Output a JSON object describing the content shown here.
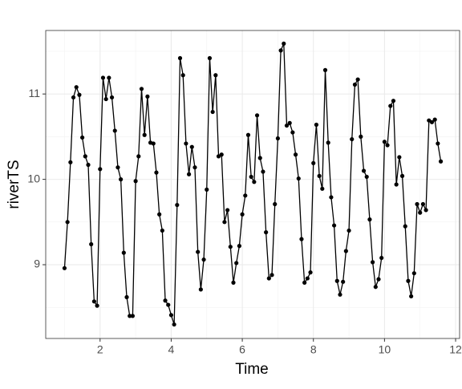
{
  "chart_data": {
    "type": "line",
    "xlabel": "Time",
    "ylabel": "riverTS",
    "x": [
      1,
      1.0833,
      1.1667,
      1.25,
      1.3333,
      1.4167,
      1.5,
      1.5833,
      1.6667,
      1.75,
      1.8333,
      1.9167,
      2,
      2.0833,
      2.1667,
      2.25,
      2.3333,
      2.4167,
      2.5,
      2.5833,
      2.6667,
      2.75,
      2.8333,
      2.9167,
      3,
      3.0833,
      3.1667,
      3.25,
      3.3333,
      3.4167,
      3.5,
      3.5833,
      3.6667,
      3.75,
      3.8333,
      3.9167,
      4,
      4.0833,
      4.1667,
      4.25,
      4.3333,
      4.4167,
      4.5,
      4.5833,
      4.6667,
      4.75,
      4.8333,
      4.9167,
      5,
      5.0833,
      5.1667,
      5.25,
      5.3333,
      5.4167,
      5.5,
      5.5833,
      5.6667,
      5.75,
      5.8333,
      5.9167,
      6,
      6.0833,
      6.1667,
      6.25,
      6.3333,
      6.4167,
      6.5,
      6.5833,
      6.6667,
      6.75,
      6.8333,
      6.9167,
      7,
      7.0833,
      7.1667,
      7.25,
      7.3333,
      7.4167,
      7.5,
      7.5833,
      7.6667,
      7.75,
      7.8333,
      7.9167,
      8,
      8.0833,
      8.1667,
      8.25,
      8.3333,
      8.4167,
      8.5,
      8.5833,
      8.6667,
      8.75,
      8.8333,
      8.9167,
      9,
      9.0833,
      9.1667,
      9.25,
      9.3333,
      9.4167,
      9.5,
      9.5833,
      9.6667,
      9.75,
      9.8333,
      9.9167,
      10,
      10.0833,
      10.1667,
      10.25,
      10.3333,
      10.4167,
      10.5,
      10.5833,
      10.6667,
      10.75,
      10.8333,
      10.9167,
      11,
      11.0833,
      11.1667,
      11.25,
      11.3333,
      11.4167,
      11.5,
      11.5833
    ],
    "values": [
      8.96,
      9.5,
      10.2,
      10.96,
      11.08,
      10.99,
      10.49,
      10.27,
      10.17,
      9.24,
      8.57,
      8.52,
      10.12,
      11.19,
      10.94,
      11.19,
      10.96,
      10.57,
      10.14,
      10.0,
      9.14,
      8.62,
      8.4,
      8.4,
      9.98,
      10.27,
      11.06,
      10.52,
      10.97,
      10.43,
      10.42,
      10.08,
      9.59,
      9.4,
      8.58,
      8.53,
      8.41,
      8.3,
      9.7,
      11.42,
      11.22,
      10.42,
      10.06,
      10.38,
      10.14,
      9.15,
      8.71,
      9.06,
      9.88,
      11.42,
      10.79,
      11.22,
      10.27,
      10.29,
      9.5,
      9.64,
      9.21,
      8.79,
      9.02,
      9.22,
      9.59,
      9.81,
      10.52,
      10.03,
      9.97,
      10.75,
      10.25,
      10.09,
      9.38,
      8.84,
      8.88,
      9.71,
      10.48,
      11.51,
      11.59,
      10.63,
      10.66,
      10.55,
      10.29,
      10.01,
      9.3,
      8.79,
      8.84,
      8.91,
      10.19,
      10.64,
      10.04,
      9.89,
      11.28,
      10.43,
      9.79,
      9.46,
      8.81,
      8.65,
      8.8,
      9.16,
      9.4,
      10.47,
      11.11,
      11.17,
      10.5,
      10.1,
      10.03,
      9.53,
      9.03,
      8.74,
      8.83,
      9.08,
      10.44,
      10.4,
      10.86,
      10.92,
      9.94,
      10.26,
      10.04,
      9.45,
      8.81,
      8.63,
      8.9,
      9.71,
      9.61,
      9.71,
      9.64,
      10.69,
      10.67,
      10.7,
      10.42,
      10.21
    ],
    "color": "#000000",
    "xlim": [
      0.471,
      12.112
    ],
    "ylim": [
      8.136,
      11.744
    ],
    "xticks": [
      2,
      4,
      6,
      8,
      10,
      12
    ],
    "yticks": [
      9,
      10,
      11
    ],
    "grid": true
  }
}
